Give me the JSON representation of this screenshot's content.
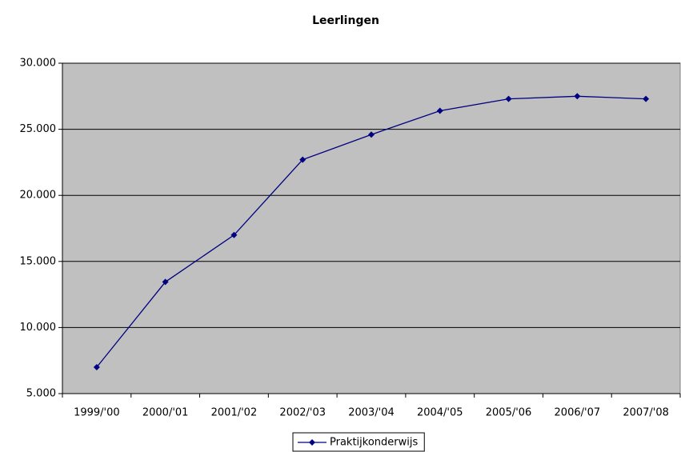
{
  "chart_data": {
    "type": "line",
    "title": "Leerlingen",
    "categories": [
      "1999/'00",
      "2000/'01",
      "2001/'02",
      "2002/'03",
      "2003/'04",
      "2004/'05",
      "2005/'06",
      "2006/'07",
      "2007/'08"
    ],
    "series": [
      {
        "name": "Praktijkonderwijs",
        "color": "#000080",
        "values": [
          7000,
          13450,
          17000,
          22700,
          24600,
          26400,
          27300,
          27500,
          27300
        ]
      }
    ],
    "ylim": [
      5000,
      30000
    ],
    "yticks": [
      {
        "value": 5000,
        "label": "5.000"
      },
      {
        "value": 10000,
        "label": "10.000"
      },
      {
        "value": 15000,
        "label": "15.000"
      },
      {
        "value": 20000,
        "label": "20.000"
      },
      {
        "value": 25000,
        "label": "25.000"
      },
      {
        "value": 30000,
        "label": "30.000"
      }
    ],
    "grid": true,
    "legend": "bottom"
  }
}
